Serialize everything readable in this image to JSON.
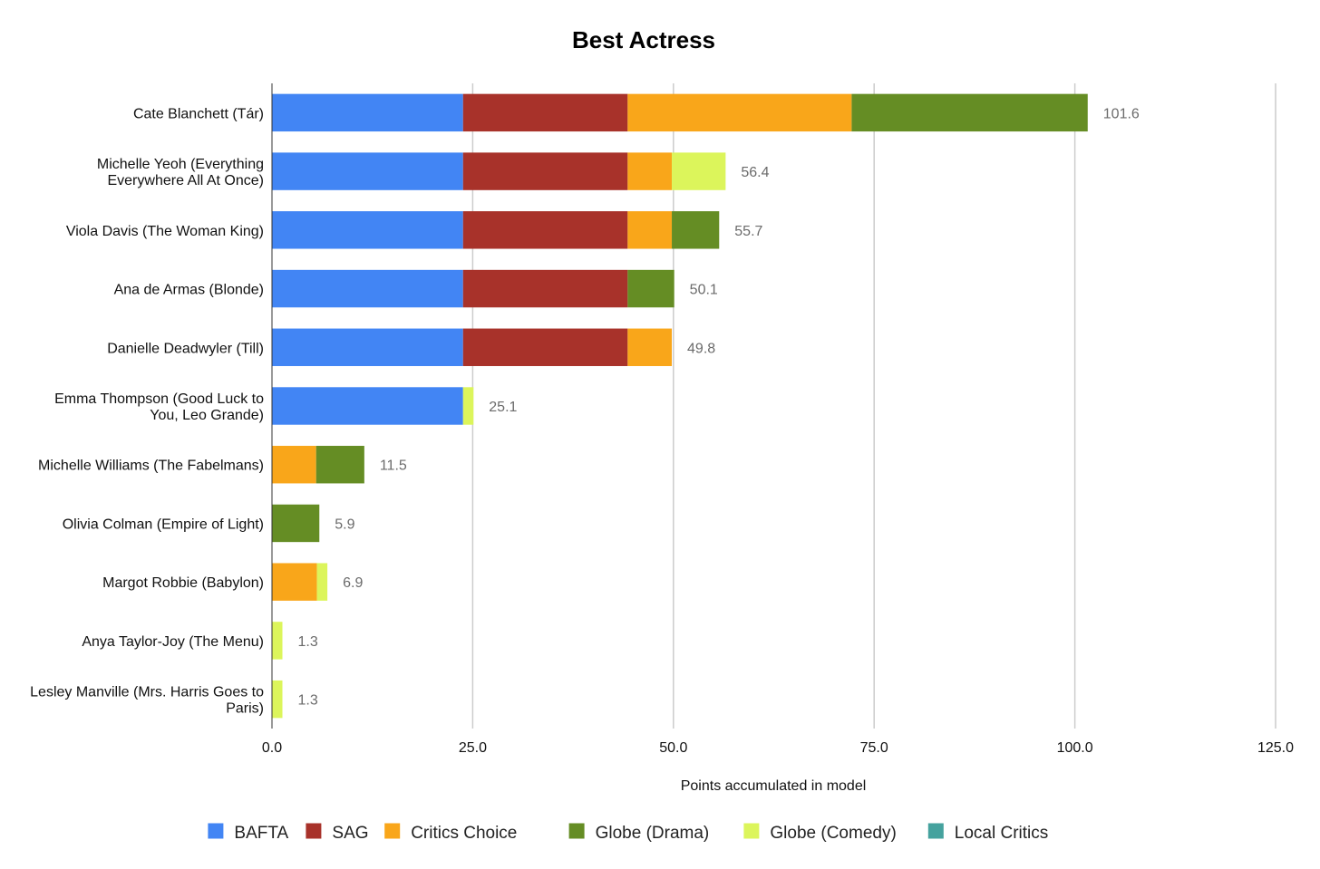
{
  "chart_data": {
    "type": "bar",
    "orientation": "horizontal",
    "stacked": true,
    "title": "Best Actress",
    "xlabel": "Points accumulated in model",
    "ylabel": "",
    "xlim": [
      0,
      125
    ],
    "x_ticks": [
      "0.0",
      "25.0",
      "50.0",
      "75.0",
      "100.0",
      "125.0"
    ],
    "x_tick_values": [
      0,
      25,
      50,
      75,
      100,
      125
    ],
    "grid": true,
    "legend_position": "bottom",
    "categories": [
      "Cate Blanchett (Tár)",
      "Michelle Yeoh (Everything Everywhere All At Once)",
      "Viola Davis (The Woman King)",
      "Ana de Armas (Blonde)",
      "Danielle Deadwyler (Till)",
      "Emma Thompson (Good Luck to You, Leo Grande)",
      "Michelle Williams (The Fabelmans)",
      "Olivia Colman (Empire of Light)",
      "Margot Robbie (Babylon)",
      "Anya Taylor-Joy (The Menu)",
      "Lesley Manville (Mrs. Harris Goes to Paris)"
    ],
    "category_lines": [
      [
        "Cate Blanchett (Tár)"
      ],
      [
        "Michelle Yeoh (Everything",
        "Everywhere All At Once)"
      ],
      [
        "Viola Davis (The Woman King)"
      ],
      [
        "Ana de Armas (Blonde)"
      ],
      [
        "Danielle Deadwyler (Till)"
      ],
      [
        "Emma Thompson (Good Luck to",
        "You, Leo Grande)"
      ],
      [
        "Michelle Williams (The Fabelmans)"
      ],
      [
        "Olivia Colman (Empire of Light)"
      ],
      [
        "Margot Robbie (Babylon)"
      ],
      [
        "Anya Taylor-Joy (The Menu)"
      ],
      [
        "Lesley Manville (Mrs. Harris Goes to",
        "Paris)"
      ]
    ],
    "series": [
      {
        "name": "BAFTA",
        "color": "#4285f4",
        "values": [
          23.8,
          23.8,
          23.8,
          23.8,
          23.8,
          23.8,
          0,
          0,
          0,
          0,
          0
        ]
      },
      {
        "name": "SAG",
        "color": "#a8322a",
        "values": [
          20.5,
          20.5,
          20.5,
          20.5,
          20.5,
          0,
          0,
          0,
          0,
          0,
          0
        ]
      },
      {
        "name": "Critics Choice",
        "color": "#f9a61a",
        "values": [
          27.9,
          5.5,
          5.5,
          0,
          5.5,
          0,
          5.5,
          0,
          5.6,
          0,
          0
        ]
      },
      {
        "name": "Globe (Drama)",
        "color": "#658d24",
        "values": [
          29.4,
          0,
          5.9,
          5.8,
          0,
          0,
          6.0,
          5.9,
          0,
          0,
          0
        ]
      },
      {
        "name": "Globe (Comedy)",
        "color": "#dcf55b",
        "values": [
          0,
          6.7,
          0,
          0,
          0,
          1.3,
          0,
          0,
          1.3,
          1.3,
          1.3
        ]
      },
      {
        "name": "Local Critics",
        "color": "#45a29e",
        "values": [
          0,
          0,
          0,
          0,
          0,
          0,
          0,
          0,
          0,
          0,
          0
        ]
      }
    ],
    "totals": [
      "101.6",
      "56.4",
      "55.7",
      "50.1",
      "49.8",
      "25.1",
      "11.5",
      "5.9",
      "6.9",
      "1.3",
      "1.3"
    ]
  }
}
